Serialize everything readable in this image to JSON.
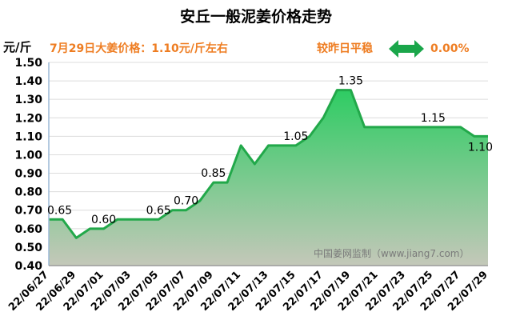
{
  "chart_data": {
    "type": "area",
    "title": "安丘一般泥姜价格走势",
    "ylabel": "元/斤",
    "subtitle": "7月29日大姜价格：1.10元/斤左右",
    "compare_label": "较昨日平稳",
    "change_value": "0.00%",
    "watermark": "中国姜网监制（www.jiang7.com）",
    "ylim": [
      0.4,
      1.5
    ],
    "yticks": [
      "0.40",
      "0.50",
      "0.60",
      "0.70",
      "0.80",
      "0.90",
      "1.00",
      "1.10",
      "1.20",
      "1.30",
      "1.40",
      "1.50"
    ],
    "dates": [
      "22/06/27",
      "22/06/28",
      "22/06/29",
      "22/06/30",
      "22/07/01",
      "22/07/02",
      "22/07/03",
      "22/07/04",
      "22/07/05",
      "22/07/06",
      "22/07/07",
      "22/07/08",
      "22/07/09",
      "22/07/10",
      "22/07/11",
      "22/07/12",
      "22/07/13",
      "22/07/14",
      "22/07/15",
      "22/07/16",
      "22/07/17",
      "22/07/18",
      "22/07/19",
      "22/07/20",
      "22/07/21",
      "22/07/22",
      "22/07/23",
      "22/07/24",
      "22/07/25",
      "22/07/26",
      "22/07/27",
      "22/07/28",
      "22/07/29"
    ],
    "values": [
      0.65,
      0.65,
      0.55,
      0.6,
      0.6,
      0.65,
      0.65,
      0.65,
      0.65,
      0.7,
      0.7,
      0.75,
      0.85,
      0.85,
      1.05,
      0.95,
      1.05,
      1.05,
      1.05,
      1.1,
      1.2,
      1.35,
      1.35,
      1.15,
      1.15,
      1.15,
      1.15,
      1.15,
      1.15,
      1.15,
      1.15,
      1.1,
      1.1
    ],
    "xtick_labels": [
      "22/06/27",
      "22/06/29",
      "22/07/01",
      "22/07/03",
      "22/07/05",
      "22/07/07",
      "22/07/09",
      "22/07/11",
      "22/07/13",
      "22/07/15",
      "22/07/17",
      "22/07/19",
      "22/07/21",
      "22/07/23",
      "22/07/25",
      "22/07/27",
      "22/07/29"
    ],
    "data_labels": [
      {
        "date": "22/06/27",
        "text": "0.65"
      },
      {
        "date": "22/07/01",
        "text": "0.60"
      },
      {
        "date": "22/07/05",
        "text": "0.65"
      },
      {
        "date": "22/07/07",
        "text": "0.70"
      },
      {
        "date": "22/07/09",
        "text": "0.85"
      },
      {
        "date": "22/07/15",
        "text": "1.05"
      },
      {
        "date": "22/07/19",
        "text": "1.35"
      },
      {
        "date": "22/07/25",
        "text": "1.15"
      },
      {
        "date": "22/07/29",
        "text": "1.10"
      }
    ],
    "colors": {
      "line": "#22a84a",
      "fill_top": "#2ecc63",
      "fill_bottom": "#c4c8b9",
      "grid": "#dcdcdc",
      "accent": "#ee7d22",
      "arrow": "#1aa64a",
      "watermark": "#7a7a7a"
    }
  }
}
